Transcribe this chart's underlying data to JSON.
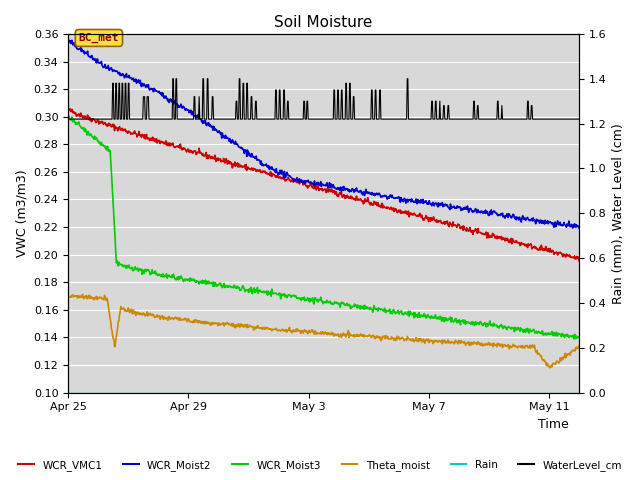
{
  "title": "Soil Moisture",
  "xlabel": "Time",
  "ylabel_left": "VWC (m3/m3)",
  "ylabel_right": "Rain (mm), Water Level (cm)",
  "ylim_left": [
    0.1,
    0.36
  ],
  "ylim_right": [
    0.0,
    1.6
  ],
  "annotation_text": "BC_met",
  "x_ticks": [
    0,
    4,
    8,
    12,
    16
  ],
  "x_tick_labels": [
    "Apr 25",
    "Apr 29",
    "May 3",
    "May 7",
    "May 11"
  ],
  "xlim": [
    0,
    17
  ],
  "yticks_left": [
    0.1,
    0.12,
    0.14,
    0.16,
    0.18,
    0.2,
    0.22,
    0.24,
    0.26,
    0.28,
    0.3,
    0.32,
    0.34,
    0.36
  ],
  "yticks_right": [
    0.0,
    0.2,
    0.4,
    0.6,
    0.8,
    1.0,
    1.2,
    1.4,
    1.6
  ],
  "legend_labels": [
    "WCR_VMC1",
    "WCR_Moist2",
    "WCR_Moist3",
    "Theta_moist",
    "Rain",
    "WaterLevel_cm"
  ],
  "legend_colors": [
    "#cc0000",
    "#0000cc",
    "#00cc00",
    "#cc8800",
    "#00cccc",
    "#000000"
  ],
  "plot_bg_color": "#d8d8d8",
  "grid_color": "#ffffff",
  "title_fontsize": 11,
  "axis_fontsize": 9,
  "tick_fontsize": 8
}
